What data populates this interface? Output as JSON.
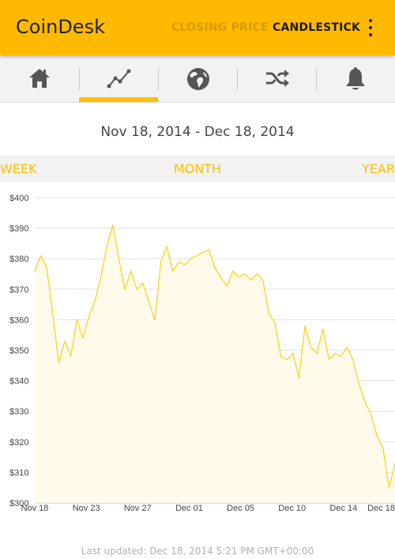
{
  "app": {
    "title": "CoinDesk",
    "actions": {
      "closing_price": "CLOSING PRICE",
      "candlestick": "CANDLESTICK"
    },
    "accent_color": "#ffb900"
  },
  "tabs": [
    {
      "icon": "home-icon",
      "selected": false
    },
    {
      "icon": "line-chart-icon",
      "selected": true
    },
    {
      "icon": "globe-icon",
      "selected": false
    },
    {
      "icon": "shuffle-icon",
      "selected": false
    },
    {
      "icon": "bell-icon",
      "selected": false
    }
  ],
  "date_range": "Nov 18, 2014 - Dec 18, 2014",
  "ranges": {
    "week": "WEEK",
    "month": "MONTH",
    "year": "YEAR",
    "selected": "MONTH"
  },
  "chart_data": {
    "type": "area",
    "title": "",
    "xlabel": "",
    "ylabel": "",
    "y_ticks": [
      "$400",
      "$390",
      "$380",
      "$370",
      "$360",
      "$350",
      "$340",
      "$330",
      "$320",
      "$310",
      "$300"
    ],
    "y_values": [
      400,
      390,
      380,
      370,
      360,
      350,
      340,
      330,
      320,
      310,
      300
    ],
    "ylim": [
      300,
      400
    ],
    "x_ticks": [
      "Nov 18",
      "Nov 23",
      "Nov 27",
      "Dec 01",
      "Dec 05",
      "Dec 10",
      "Dec 14",
      "Dec 18"
    ],
    "xlim": [
      "2014-11-18",
      "2014-12-18"
    ],
    "grid": true,
    "line_color": "#ffd21f",
    "fill_color": "#fffaea",
    "series": [
      {
        "x": [
          "2014-11-18",
          "2014-11-18 12:00",
          "2014-11-19",
          "2014-11-19 12:00",
          "2014-11-20",
          "2014-11-20 12:00",
          "2014-11-21",
          "2014-11-21 12:00",
          "2014-11-22",
          "2014-11-22 12:00",
          "2014-11-23",
          "2014-11-23 12:00",
          "2014-11-24",
          "2014-11-24 12:00",
          "2014-11-25",
          "2014-11-25 12:00",
          "2014-11-26",
          "2014-11-26 12:00",
          "2014-11-27",
          "2014-11-27 12:00",
          "2014-11-28",
          "2014-11-28 12:00",
          "2014-11-29",
          "2014-11-29 12:00",
          "2014-11-30",
          "2014-11-30 12:00",
          "2014-12-01",
          "2014-12-01 12:00",
          "2014-12-02",
          "2014-12-02 12:00",
          "2014-12-03",
          "2014-12-03 12:00",
          "2014-12-04",
          "2014-12-04 12:00",
          "2014-12-05",
          "2014-12-05 12:00",
          "2014-12-06",
          "2014-12-06 12:00",
          "2014-12-07",
          "2014-12-07 12:00",
          "2014-12-08",
          "2014-12-08 12:00",
          "2014-12-09",
          "2014-12-09 12:00",
          "2014-12-10",
          "2014-12-10 12:00",
          "2014-12-11",
          "2014-12-11 12:00",
          "2014-12-12",
          "2014-12-12 12:00",
          "2014-12-13",
          "2014-12-13 12:00",
          "2014-12-14",
          "2014-12-14 12:00",
          "2014-12-15",
          "2014-12-15 12:00",
          "2014-12-16",
          "2014-12-16 12:00",
          "2014-12-17",
          "2014-12-17 12:00",
          "2014-12-18"
        ],
        "values": [
          376,
          381,
          377,
          362,
          346,
          353,
          348,
          360,
          354,
          361,
          366,
          374,
          384,
          391,
          380,
          370,
          376,
          370,
          372,
          366,
          360,
          379,
          384,
          376,
          379,
          378,
          380,
          381,
          382,
          383,
          377,
          374,
          371,
          376,
          374,
          375,
          373,
          375,
          373,
          362,
          359,
          348,
          347,
          349,
          341,
          358,
          351,
          349,
          357,
          347,
          349,
          348,
          351,
          347,
          339,
          333,
          329,
          322,
          318,
          305,
          313
        ]
      }
    ]
  },
  "last_updated": "Last updated: Dec 18, 2014 5:21 PM GMT+00:00"
}
